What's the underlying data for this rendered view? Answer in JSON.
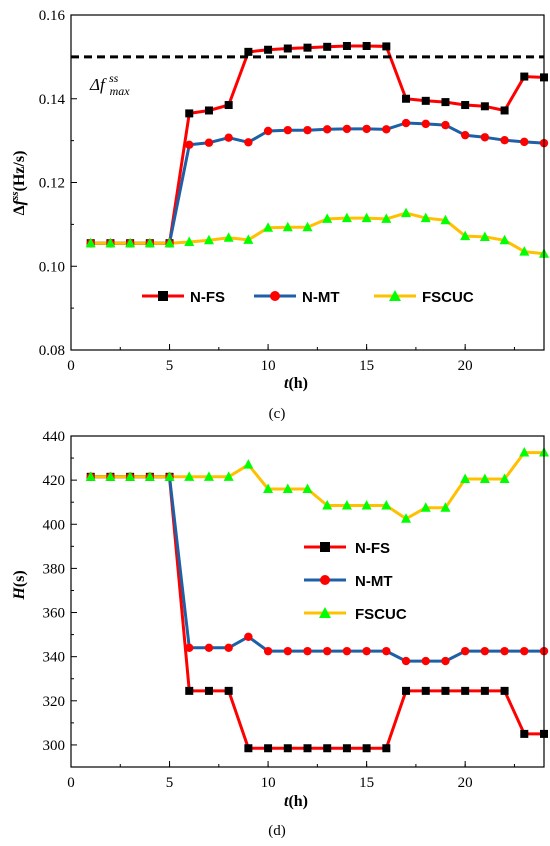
{
  "chart_data": [
    {
      "type": "line",
      "panel_caption": "(c)",
      "x_tick_labels": [
        "0",
        "5",
        "10",
        "15",
        "20"
      ],
      "y_tick_labels": [
        "0.08",
        "0.10",
        "0.12",
        "0.14",
        "0.16"
      ],
      "xlim": [
        0,
        24
      ],
      "ylim": [
        0.08,
        0.16
      ],
      "x_ticks": [
        0,
        5,
        10,
        15,
        20
      ],
      "y_ticks": [
        0.08,
        0.1,
        0.12,
        0.14,
        0.16
      ],
      "xlabel": {
        "italic": "t",
        "rest": "(h)"
      },
      "ylabel": {
        "prefix": "Δ",
        "italic": "f",
        "sup": "ss",
        "rest": "(Hz/s)"
      },
      "legend_placement": "inside-bottom",
      "reference_line": {
        "y": 0.15,
        "style": "dashed",
        "color": "#000000",
        "label": {
          "prefix": "Δ",
          "italic": "f",
          "sup": "ss",
          "sub": "max"
        }
      },
      "x": [
        1,
        2,
        3,
        4,
        5,
        6,
        7,
        8,
        9,
        10,
        11,
        12,
        13,
        14,
        15,
        16,
        17,
        18,
        19,
        20,
        21,
        22,
        23,
        24
      ],
      "series": [
        {
          "name": "N-FS",
          "color": "#ff0000",
          "marker": "square",
          "values": [
            0.1055,
            0.1055,
            0.1055,
            0.1055,
            0.1055,
            0.1365,
            0.1372,
            0.1385,
            0.1512,
            0.1517,
            0.152,
            0.1522,
            0.1524,
            0.1526,
            0.1526,
            0.1525,
            0.14,
            0.1395,
            0.1392,
            0.1385,
            0.1382,
            0.1372,
            0.1453,
            0.1451
          ]
        },
        {
          "name": "N-MT",
          "color": "#1f5fa6",
          "marker": "circle",
          "values": [
            0.1055,
            0.1055,
            0.1055,
            0.1055,
            0.1055,
            0.129,
            0.1295,
            0.1307,
            0.1296,
            0.1323,
            0.1325,
            0.1325,
            0.1327,
            0.1328,
            0.1328,
            0.1327,
            0.1342,
            0.134,
            0.1337,
            0.1313,
            0.1308,
            0.1301,
            0.1297,
            0.1294
          ]
        },
        {
          "name": "FSCUC",
          "color": "#ffc000",
          "marker": "triangle",
          "values": [
            0.1055,
            0.1055,
            0.1055,
            0.1055,
            0.1055,
            0.1058,
            0.1062,
            0.1068,
            0.1063,
            0.1092,
            0.1093,
            0.1093,
            0.1113,
            0.1115,
            0.1115,
            0.1113,
            0.1127,
            0.1115,
            0.111,
            0.1072,
            0.107,
            0.1062,
            0.1035,
            0.103
          ]
        }
      ]
    },
    {
      "type": "line",
      "panel_caption": "(d)",
      "x_tick_labels": [
        "0",
        "5",
        "10",
        "15",
        "20"
      ],
      "y_tick_labels": [
        "300",
        "320",
        "340",
        "360",
        "380",
        "400",
        "420",
        "440"
      ],
      "xlim": [
        0,
        24
      ],
      "ylim": [
        290,
        440
      ],
      "x_ticks": [
        0,
        5,
        10,
        15,
        20
      ],
      "y_ticks": [
        300,
        320,
        340,
        360,
        380,
        400,
        420,
        440
      ],
      "xlabel": {
        "italic": "t",
        "rest": "(h)"
      },
      "ylabel": {
        "italic": "H",
        "rest": "(s)"
      },
      "legend_placement": "center-right",
      "x": [
        1,
        2,
        3,
        4,
        5,
        6,
        7,
        8,
        9,
        10,
        11,
        12,
        13,
        14,
        15,
        16,
        17,
        18,
        19,
        20,
        21,
        22,
        23,
        24
      ],
      "series": [
        {
          "name": "N-FS",
          "color": "#ff0000",
          "marker": "square",
          "values": [
            421.5,
            421.5,
            421.5,
            421.5,
            421.5,
            324.5,
            324.5,
            324.5,
            298.5,
            298.5,
            298.5,
            298.5,
            298.5,
            298.5,
            298.5,
            298.5,
            324.5,
            324.5,
            324.5,
            324.5,
            324.5,
            324.5,
            305,
            305
          ]
        },
        {
          "name": "N-MT",
          "color": "#1f5fa6",
          "marker": "circle",
          "values": [
            421.5,
            421.5,
            421.5,
            421.5,
            421.5,
            344,
            344,
            344,
            349,
            342.5,
            342.5,
            342.5,
            342.5,
            342.5,
            342.5,
            342.5,
            338,
            338,
            338,
            342.5,
            342.5,
            342.5,
            342.5,
            342.5
          ]
        },
        {
          "name": "FSCUC",
          "color": "#ffc000",
          "marker": "triangle",
          "values": [
            421.5,
            421.5,
            421.5,
            421.5,
            421.5,
            421.5,
            421.5,
            421.5,
            427,
            416,
            416,
            416,
            408.5,
            408.5,
            408.5,
            408.5,
            402.5,
            407.5,
            407.5,
            420.5,
            420.5,
            420.5,
            432.5,
            432.5
          ]
        }
      ]
    }
  ]
}
